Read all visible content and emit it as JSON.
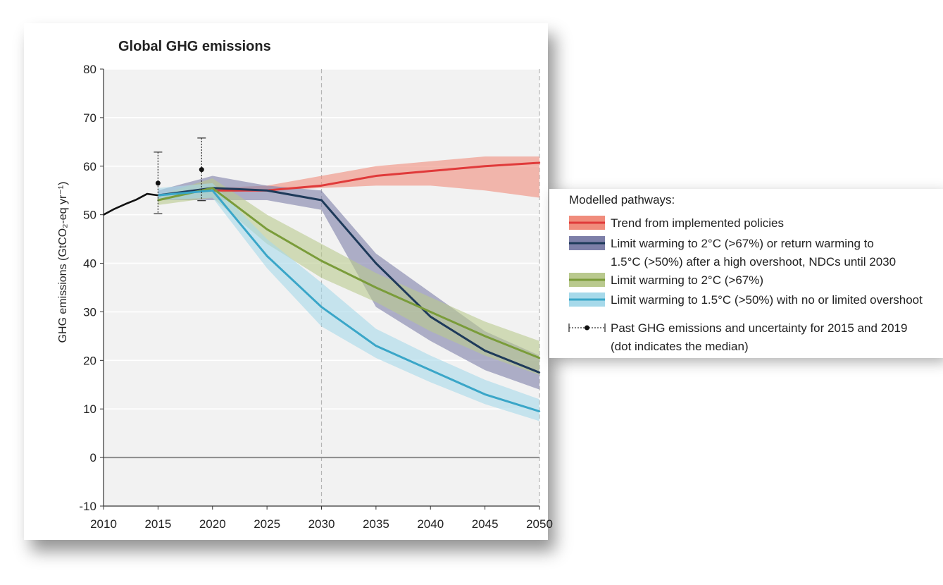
{
  "chart_data": {
    "type": "line",
    "title": "Global GHG emissions",
    "xlabel": "",
    "ylabel": "GHG emissions (GtCO₂-eq yr⁻¹)",
    "xlim": [
      2010,
      2050
    ],
    "ylim": [
      -10,
      80
    ],
    "xticks": [
      2010,
      2015,
      2020,
      2025,
      2030,
      2035,
      2040,
      2045,
      2050
    ],
    "yticks": [
      -10,
      0,
      10,
      20,
      30,
      40,
      50,
      60,
      70,
      80
    ],
    "grid": true,
    "vertical_reference_lines": [
      2030,
      2050
    ],
    "legend_title": "Modelled pathways:",
    "legend_position": "right",
    "historical": {
      "x": [
        2010,
        2011,
        2012,
        2013,
        2014,
        2015
      ],
      "y": [
        50,
        51.2,
        52.2,
        53.1,
        54.3,
        54.0
      ],
      "color": "#111111"
    },
    "past_emissions": {
      "label": "Past GHG emissions and uncertainty for 2015 and 2019 (dot indicates the median)",
      "points": [
        {
          "x": 2015,
          "median": 56.5,
          "low": 50.2,
          "high": 62.9
        },
        {
          "x": 2019,
          "median": 59.3,
          "low": 52.9,
          "high": 65.8
        }
      ]
    },
    "series": [
      {
        "name": "Trend from implemented policies",
        "line_color": "#e03a3a",
        "band_color": "#f08c7c",
        "x": [
          2020,
          2025,
          2030,
          2035,
          2040,
          2045,
          2050
        ],
        "y": [
          55,
          55,
          56,
          58,
          59,
          60,
          60.7
        ],
        "low": [
          54.5,
          55,
          55.5,
          56,
          56,
          55,
          53.5
        ],
        "high": [
          55.5,
          56,
          58,
          60,
          61,
          62,
          62
        ]
      },
      {
        "name": "Limit warming to 2°C (>67%) or return warming to 1.5°C (>50%) after a high overshoot, NDCs until 2030",
        "line_color": "#1e3a5a",
        "band_color": "#7d7fa8",
        "x": [
          2015,
          2020,
          2025,
          2030,
          2035,
          2040,
          2045,
          2050
        ],
        "y": [
          54,
          55.5,
          55,
          53,
          40,
          29,
          22,
          17.5
        ],
        "low": [
          53,
          53,
          53,
          51,
          31,
          24,
          18,
          14
        ],
        "high": [
          55,
          58,
          56,
          55,
          42,
          34,
          26,
          21
        ]
      },
      {
        "name": "Limit warming to 2°C (>67%)",
        "line_color": "#7a9c3a",
        "band_color": "#b9c98e",
        "x": [
          2015,
          2020,
          2025,
          2030,
          2035,
          2040,
          2045,
          2050
        ],
        "y": [
          53,
          55.5,
          47,
          40.5,
          35,
          30,
          25,
          20.5
        ],
        "low": [
          52,
          53.5,
          44,
          37,
          32,
          26,
          21,
          17
        ],
        "high": [
          54,
          57.5,
          50,
          44,
          38,
          33,
          28,
          24
        ]
      },
      {
        "name": "Limit warming to 1.5°C (>50%) with no or limited overshoot",
        "line_color": "#3aa6c8",
        "band_color": "#a6d9ea",
        "x": [
          2015,
          2020,
          2025,
          2030,
          2035,
          2040,
          2045,
          2050
        ],
        "y": [
          54,
          55,
          41.5,
          31,
          23,
          18,
          13,
          9.5
        ],
        "low": [
          53,
          53.5,
          39,
          27,
          20.5,
          15.5,
          11,
          7.5
        ],
        "high": [
          55.5,
          56.5,
          45,
          36,
          26.5,
          21,
          16,
          12
        ]
      }
    ]
  }
}
